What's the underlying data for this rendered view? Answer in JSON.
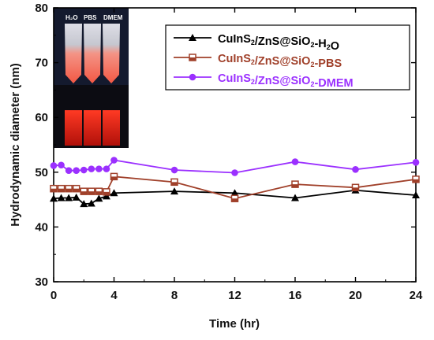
{
  "chart_data": {
    "type": "line",
    "xlabel": "Time (hr)",
    "ylabel": "Hydrodynamic diameter (nm)",
    "xlim": [
      0,
      24
    ],
    "ylim": [
      30,
      80
    ],
    "xticks": [
      0,
      4,
      8,
      12,
      16,
      20,
      24
    ],
    "yticks": [
      30,
      40,
      50,
      60,
      70,
      80
    ],
    "grid": false,
    "legend_position": "top-right",
    "series": [
      {
        "name": "CuInS2/ZnS@SiO2-H2O",
        "color": "#000000",
        "marker": "triangle",
        "x": [
          0,
          0.5,
          1,
          1.5,
          2,
          2.5,
          3,
          3.5,
          4,
          8,
          12,
          16,
          20,
          24
        ],
        "values": [
          45.2,
          45.3,
          45.3,
          45.4,
          44.2,
          44.3,
          45.2,
          45.6,
          46.2,
          46.5,
          46.2,
          45.3,
          46.7,
          45.8
        ]
      },
      {
        "name": "CuInS2/ZnS@SiO2-PBS",
        "color": "#a0402a",
        "marker": "half-filled-square",
        "x": [
          0,
          0.5,
          1,
          1.5,
          2,
          2.5,
          3,
          3.5,
          4,
          8,
          12,
          16,
          20,
          24
        ],
        "values": [
          47.0,
          47.0,
          47.0,
          47.0,
          46.5,
          46.5,
          46.5,
          46.4,
          49.2,
          48.2,
          45.2,
          47.8,
          47.2,
          48.7
        ]
      },
      {
        "name": "CuInS2/ZnS@SiO2-DMEM",
        "color": "#9b30ff",
        "marker": "circle",
        "x": [
          0,
          0.5,
          1,
          1.5,
          2,
          2.5,
          3,
          3.5,
          4,
          8,
          12,
          16,
          20,
          24
        ],
        "values": [
          51.2,
          51.3,
          50.3,
          50.3,
          50.4,
          50.6,
          50.6,
          50.6,
          52.2,
          50.4,
          49.9,
          51.9,
          50.5,
          51.8
        ]
      }
    ],
    "inset": {
      "description": "vial photographs",
      "labels": [
        "H₂O",
        "PBS",
        "DMEM"
      ]
    }
  },
  "legend_labels": {
    "h2o": [
      "CuInS",
      "2",
      "/ZnS@SiO",
      "2",
      "-H",
      "2",
      "O"
    ],
    "pbs": [
      "CuInS",
      "2",
      "/ZnS@SiO",
      "2",
      "-PBS"
    ],
    "dmem": [
      "CuInS",
      "2",
      "/ZnS@SiO",
      "2",
      "-DMEM"
    ]
  }
}
